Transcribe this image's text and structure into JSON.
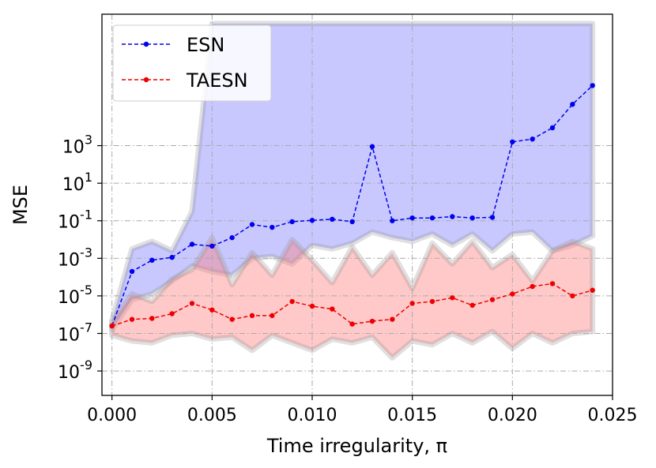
{
  "chart_data": {
    "type": "line",
    "xlabel": "Time irregularity, π",
    "ylabel": "MSE",
    "xlim": [
      -0.0005,
      0.025
    ],
    "ylim_log10": [
      -10.3,
      10
    ],
    "y_scale": "log",
    "grid": true,
    "grid_style": "dash-dot",
    "legend_position": "upper-left",
    "x_ticks": [
      0.0,
      0.005,
      0.01,
      0.015,
      0.02,
      0.025
    ],
    "x_tick_labels": [
      "0.000",
      "0.005",
      "0.010",
      "0.015",
      "0.020",
      "0.025"
    ],
    "y_ticks_log10": [
      3,
      1,
      -1,
      -3,
      -5,
      -7,
      -9
    ],
    "y_tick_labels": [
      {
        "base": "10",
        "exp": "3"
      },
      {
        "base": "10",
        "exp": "1"
      },
      {
        "base": "10",
        "exp": "-1"
      },
      {
        "base": "10",
        "exp": "-3"
      },
      {
        "base": "10",
        "exp": "-5"
      },
      {
        "base": "10",
        "exp": "-7"
      },
      {
        "base": "10",
        "exp": "-9"
      }
    ],
    "x": [
      0.0,
      0.001,
      0.002,
      0.003,
      0.004,
      0.005,
      0.006,
      0.007,
      0.008,
      0.009,
      0.01,
      0.011,
      0.012,
      0.013,
      0.014,
      0.015,
      0.016,
      0.017,
      0.018,
      0.019,
      0.02,
      0.021,
      0.022,
      0.023,
      0.024
    ],
    "series": [
      {
        "name": "ESN",
        "color": "#0000ee",
        "fill_color": "#5555ff",
        "log10_mean": [
          -6.6,
          -3.7,
          -3.1,
          -2.95,
          -2.25,
          -2.35,
          -1.9,
          -1.2,
          -1.35,
          -1.05,
          -0.98,
          -0.92,
          -1.05,
          2.95,
          -1.0,
          -0.85,
          -0.85,
          -0.78,
          -0.85,
          -0.82,
          3.2,
          3.35,
          3.95,
          5.2,
          6.2
        ],
        "log10_upper": [
          -6.3,
          -2.5,
          -2.1,
          -2.6,
          -0.5,
          9.5,
          9.5,
          9.5,
          9.5,
          9.5,
          9.5,
          9.5,
          9.5,
          9.5,
          9.5,
          9.5,
          9.5,
          9.5,
          9.5,
          9.5,
          9.5,
          9.5,
          9.5,
          9.5,
          9.5
        ],
        "log10_lower": [
          -6.8,
          -5.2,
          -4.9,
          -4.2,
          -3.4,
          -3.7,
          -3.9,
          -3.0,
          -2.9,
          -3.3,
          -2.3,
          -2.5,
          -2.2,
          -1.6,
          -1.9,
          -2.1,
          -1.7,
          -2.3,
          -1.7,
          -2.6,
          -1.7,
          -1.6,
          -2.6,
          -2.3,
          -1.8
        ]
      },
      {
        "name": "TAESN",
        "color": "#ee0000",
        "fill_color": "#ff7777",
        "log10_mean": [
          -6.6,
          -6.25,
          -6.2,
          -5.95,
          -5.4,
          -5.75,
          -6.25,
          -6.05,
          -6.05,
          -5.3,
          -5.55,
          -5.7,
          -6.5,
          -6.35,
          -6.25,
          -5.4,
          -5.3,
          -5.1,
          -5.5,
          -5.2,
          -4.9,
          -4.5,
          -4.35,
          -5.0,
          -4.7
        ],
        "log10_upper": [
          -6.4,
          -4.9,
          -5.3,
          -4.1,
          -3.6,
          -1.9,
          -4.4,
          -2.7,
          -3.9,
          -2.0,
          -3.1,
          -4.3,
          -2.4,
          -3.9,
          -2.7,
          -4.6,
          -2.2,
          -3.3,
          -2.1,
          -3.5,
          -2.8,
          -4.2,
          -2.6,
          -2.1,
          -2.5
        ],
        "log10_lower": [
          -7.1,
          -7.4,
          -7.5,
          -7.1,
          -7.0,
          -7.3,
          -7.2,
          -7.9,
          -7.1,
          -7.5,
          -7.9,
          -7.3,
          -7.5,
          -7.2,
          -8.3,
          -7.4,
          -7.6,
          -7.0,
          -7.5,
          -6.9,
          -7.8,
          -7.0,
          -7.5,
          -7.0,
          -6.9
        ]
      }
    ]
  }
}
